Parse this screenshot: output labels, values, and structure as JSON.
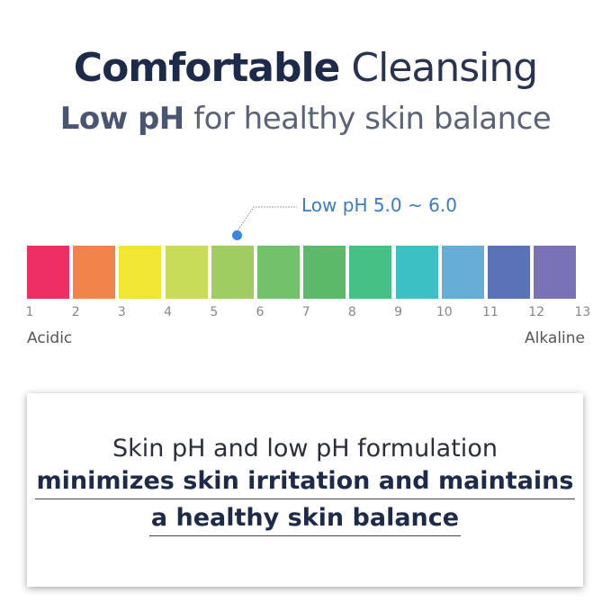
{
  "title": {
    "bold": "Comfortable",
    "light": "Cleansing"
  },
  "subtitle": {
    "bold": "Low pH",
    "light": "for healthy skin balance"
  },
  "scale": {
    "callout": "Low pH 5.0 ~ 6.0",
    "highlight_range": [
      5.0,
      6.0
    ],
    "ticks": [
      "1",
      "2",
      "3",
      "4",
      "5",
      "6",
      "7",
      "8",
      "9",
      "10",
      "11",
      "12",
      "13"
    ],
    "colors": [
      "#ee2f66",
      "#f0844a",
      "#f2e634",
      "#c8dc5a",
      "#9fcd62",
      "#71c26a",
      "#5db96a",
      "#47c086",
      "#3cc0c4",
      "#66aed6",
      "#5a72b7",
      "#7a72b6"
    ],
    "left_label": "Acidic",
    "right_label": "Alkaline",
    "accent": "#3a86e0"
  },
  "card": {
    "line1": "Skin pH and low pH formulation",
    "line2": "minimizes skin irritation and maintains",
    "line3": "a healthy skin balance"
  }
}
